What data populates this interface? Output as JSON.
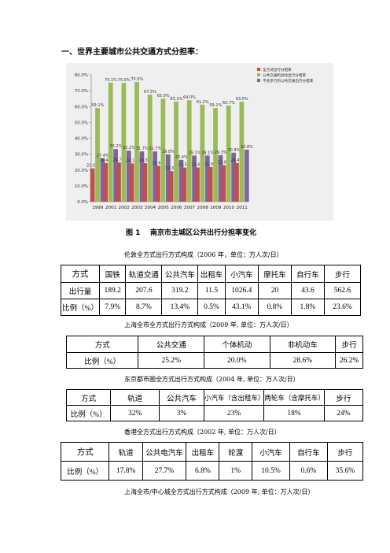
{
  "heading": "一、世界主要城市公共交通方式分担率：",
  "figure": {
    "caption_num": "图 1",
    "caption_text": "南京市主城区公共出行分担率变化"
  },
  "chart_data": {
    "type": "bar",
    "title": "",
    "categories": [
      "1999",
      "2001",
      "2002",
      "2003",
      "2004",
      "2005",
      "2006",
      "2007",
      "2008",
      "2009",
      "2010",
      "2011"
    ],
    "ylim": [
      0,
      80
    ],
    "yticks": [
      "0.0%",
      "10.0%",
      "20.0%",
      "30.0%",
      "40.0%",
      "50.0%",
      "60.0%",
      "70.0%",
      "80.0%"
    ],
    "grid": false,
    "legend_position": "top-right",
    "series": [
      {
        "name": "全方式出行分担率",
        "color": "#c0504d",
        "values": [
          21.0,
          24.4,
          24.7,
          24.1,
          24.3,
          22.6,
          19.3,
          21.5,
          21.6,
          21.9,
          23.0,
          24.4
        ],
        "labels": [
          "21.0%",
          "24.4%",
          "24.7%",
          "24.1%",
          "24.3%",
          "22.6%",
          "19.3%",
          "21.5%",
          "21.6%",
          "21.9%",
          "23.0%",
          "24.4%"
        ]
      },
      {
        "name": "公共交通机动化出行分担率",
        "color": "#9bbb59",
        "values": [
          59.1,
          75.1,
          75.0,
          75.5,
          67.5,
          65.0,
          63.2,
          64.0,
          61.2,
          59.1,
          60.7,
          63.0
        ],
        "labels": [
          "59.1%",
          "75.1%",
          "75.0%",
          "75.5%",
          "67.5%",
          "65.0%",
          "63.2%",
          "64.0%",
          "61.2%",
          "59.1%",
          "60.7%",
          "63.0%"
        ]
      },
      {
        "name": "不含步行的公共交通出行分担率",
        "color": "#8064a2",
        "values": [
          27.4,
          33.2,
          32.2,
          31.7,
          31.7,
          29.8,
          26.4,
          29.1,
          29.1,
          29.3,
          30.9,
          32.8
        ],
        "labels": [
          "27.4%",
          "33.2%",
          "32.2%",
          "31.7%",
          "31.7%",
          "29.8%",
          "26.4%",
          "29.1%",
          "29.1%",
          "29.3%",
          "30.9%",
          "32.8%"
        ]
      }
    ]
  },
  "tables": [
    {
      "caption": "伦敦全方式出行方式构成（2006 年，单位：万人次/日）",
      "rows": [
        [
          "方式",
          "国铁",
          "轨道交通",
          "公共汽车",
          "出租车",
          "小汽车",
          "摩托车",
          "自行车",
          "步行"
        ],
        [
          "出行量",
          "189.2",
          "207.6",
          "319.2",
          "11.5",
          "1026.4",
          "20",
          "43.6",
          "562.6"
        ],
        [
          "比例（%）",
          "7.9%",
          "8.7%",
          "13.4%",
          "0.5%",
          "43.1%",
          "0.8%",
          "1.8%",
          "23.6%"
        ]
      ]
    },
    {
      "caption": "上海全市全方式出行方式构成（2009 年, 单位：万人次/日）",
      "rows": [
        [
          "方式",
          "公共交通",
          "个体机动",
          "非机动车",
          "步行"
        ],
        [
          "比例（%）",
          "25.2%",
          "20.0%",
          "28.6%",
          "26.2%"
        ]
      ]
    },
    {
      "caption": "东京都市圈全方式出行方式构成（2004 年, 单位：万人次/日）",
      "rows": [
        [
          "方式",
          "轨道",
          "公共汽车",
          "小汽车（含出租车）",
          "两轮车（含摩托车）",
          "步行"
        ],
        [
          "比例（%）",
          "32%",
          "3%",
          "23%",
          "18%",
          "24%"
        ]
      ]
    },
    {
      "caption": "香港全方式出行方式构成（2002 年, 单位：万人次/日）",
      "rows": [
        [
          "方式",
          "轨道",
          "公共电汽车",
          "出租车",
          "轮渡",
          "小汽车",
          "自行车",
          "步行"
        ],
        [
          "比例（%）",
          "17.8%",
          "27.7%",
          "6.8%",
          "1%",
          "10.5%",
          "0.6%",
          "35.6%"
        ]
      ]
    }
  ],
  "trailing_caption": "上海全市/中心城全方式出行方式构成（2009 年, 单位：万人次/日）"
}
